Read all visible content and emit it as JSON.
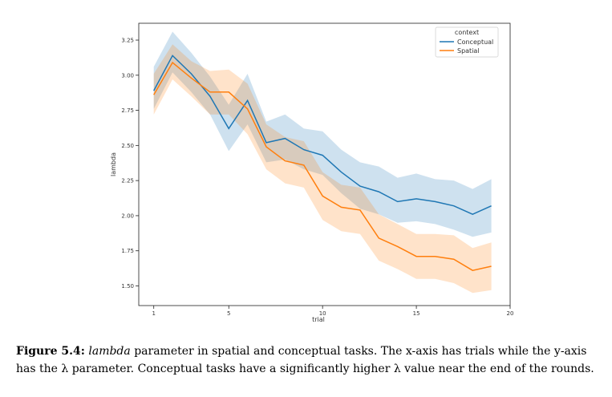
{
  "chart_data": {
    "type": "line",
    "xlabel": "trial",
    "ylabel": "lambda",
    "xlim": [
      0.2,
      20
    ],
    "ylim": [
      1.36,
      3.37
    ],
    "xticks": [
      1,
      5,
      10,
      15,
      20
    ],
    "yticks": [
      "1.50",
      "1.75",
      "2.00",
      "2.25",
      "2.50",
      "2.75",
      "3.00",
      "3.25"
    ],
    "legend": {
      "title": "context",
      "position": "top-right"
    },
    "series": [
      {
        "name": "Conceptual",
        "color": "#1f77b4",
        "x": [
          1,
          2,
          3,
          4,
          5,
          6,
          7,
          8,
          9,
          10,
          11,
          12,
          13,
          14,
          15,
          16,
          17,
          18,
          19
        ],
        "y": [
          2.89,
          3.14,
          3.01,
          2.85,
          2.62,
          2.82,
          2.52,
          2.55,
          2.47,
          2.43,
          2.31,
          2.21,
          2.17,
          2.1,
          2.12,
          2.1,
          2.07,
          2.01,
          2.07
        ],
        "lower": [
          2.76,
          3.02,
          2.88,
          2.72,
          2.46,
          2.65,
          2.38,
          2.4,
          2.33,
          2.29,
          2.16,
          2.05,
          2.01,
          1.95,
          1.96,
          1.94,
          1.9,
          1.85,
          1.88
        ],
        "upper": [
          3.06,
          3.31,
          3.16,
          2.99,
          2.79,
          3.01,
          2.67,
          2.72,
          2.62,
          2.6,
          2.47,
          2.38,
          2.35,
          2.27,
          2.3,
          2.26,
          2.25,
          2.19,
          2.26
        ]
      },
      {
        "name": "Spatial",
        "color": "#ff7f0e",
        "x": [
          1,
          2,
          3,
          4,
          5,
          6,
          7,
          8,
          9,
          10,
          11,
          12,
          13,
          14,
          15,
          16,
          17,
          18,
          19
        ],
        "y": [
          2.86,
          3.09,
          2.98,
          2.88,
          2.88,
          2.76,
          2.49,
          2.39,
          2.36,
          2.14,
          2.06,
          2.04,
          1.84,
          1.78,
          1.71,
          1.71,
          1.69,
          1.61,
          1.64
        ],
        "lower": [
          2.72,
          2.97,
          2.85,
          2.72,
          2.72,
          2.58,
          2.33,
          2.23,
          2.2,
          1.97,
          1.89,
          1.87,
          1.68,
          1.62,
          1.55,
          1.55,
          1.52,
          1.45,
          1.47
        ],
        "upper": [
          3.01,
          3.22,
          3.1,
          3.03,
          3.04,
          2.94,
          2.65,
          2.56,
          2.53,
          2.31,
          2.22,
          2.2,
          2.01,
          1.94,
          1.87,
          1.87,
          1.86,
          1.77,
          1.81
        ]
      }
    ]
  },
  "caption": {
    "label": "Figure 5.4:",
    "param": "lambda",
    "text1": " parameter in spatial and conceptual tasks. The x-axis has trials while the y-axis has the λ parameter. Conceptual tasks have a significantly higher λ value near the end of the rounds."
  }
}
